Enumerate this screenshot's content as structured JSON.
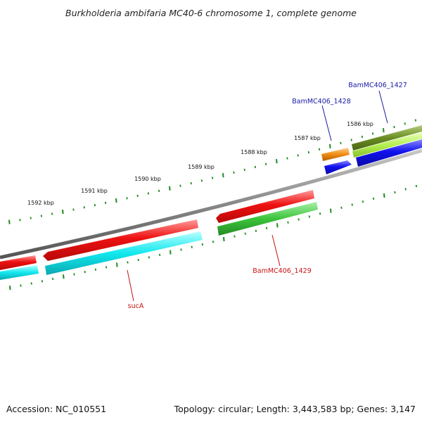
{
  "title": "Burkholderia ambifaria MC40-6 chromosome 1, complete genome",
  "footer": {
    "accession": "Accession: NC_010551",
    "summary": "Topology: circular; Length: 3,443,583 bp; Genes: 3,147"
  },
  "ruler": {
    "unit": "kbp",
    "ticks": [
      {
        "value": 1592,
        "label": "1592 kbp"
      },
      {
        "value": 1591,
        "label": "1591 kbp"
      },
      {
        "value": 1590,
        "label": "1590 kbp"
      },
      {
        "value": 1589,
        "label": "1589 kbp"
      },
      {
        "value": 1588,
        "label": "1588 kbp"
      },
      {
        "value": 1587,
        "label": "1587 kbp"
      },
      {
        "value": 1586,
        "label": "1586 kbp"
      }
    ]
  },
  "gene_labels": [
    {
      "name": "BamMC406_1427",
      "color": "#1a1aa6"
    },
    {
      "name": "BamMC406_1428",
      "color": "#1a1aa6"
    },
    {
      "name": "BamMC406_1429",
      "color": "#c81414"
    },
    {
      "name": "sucA",
      "color": "#c81414"
    }
  ],
  "colors": {
    "red": "#ee1111",
    "cyan": "#11e8ee",
    "green": "#3cc43c",
    "blue": "#1111ee",
    "orange": "#f08c11",
    "olive": "#6b8e23",
    "lime": "#b4f050",
    "backbone": "#888888",
    "tick": "#1f8c1f"
  }
}
